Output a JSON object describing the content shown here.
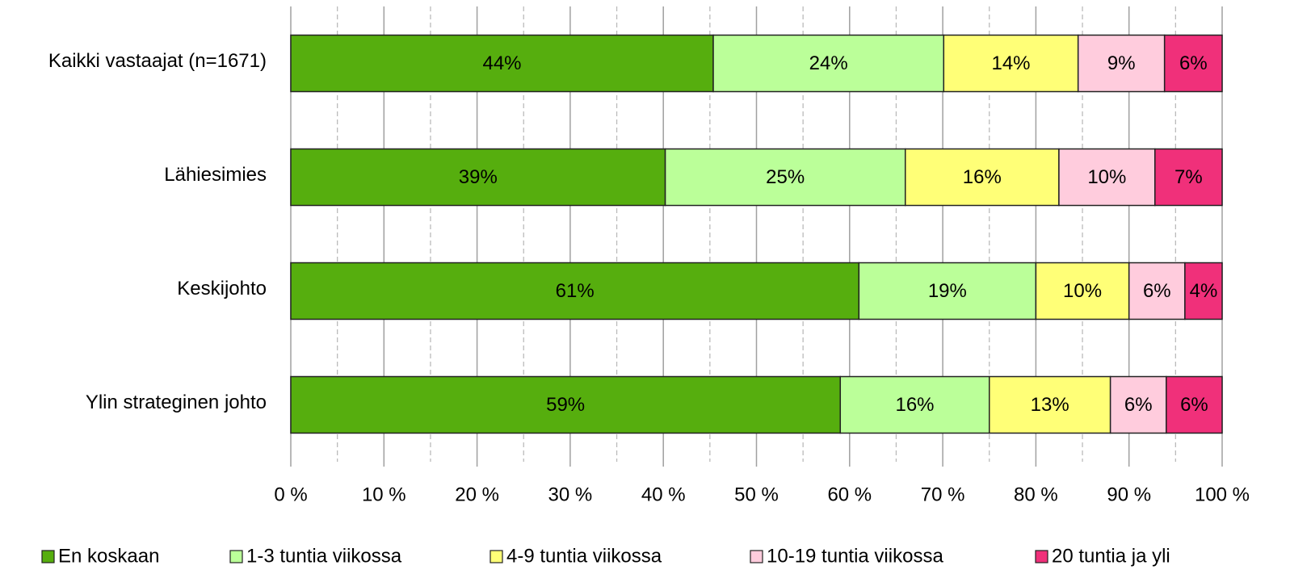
{
  "chart_data": {
    "type": "bar",
    "orientation": "horizontal",
    "stacking": "percent",
    "categories": [
      "Kaikki vastaajat (n=1671)",
      "Lähiesimies",
      "Keskijohto",
      "Ylin strateginen johto"
    ],
    "series": [
      {
        "name": "En koskaan",
        "color": "#56ae0e",
        "values": [
          44,
          39,
          61,
          59
        ],
        "value_labels": [
          "44%",
          "39%",
          "61%",
          "59%"
        ]
      },
      {
        "name": "1-3 tuntia viikossa",
        "color": "#bbff99",
        "values": [
          24,
          25,
          19,
          16
        ],
        "value_labels": [
          "24%",
          "25%",
          "19%",
          "16%"
        ]
      },
      {
        "name": "4-9 tuntia viikossa",
        "color": "#ffff77",
        "values": [
          14,
          16,
          10,
          13
        ],
        "value_labels": [
          "14%",
          "16%",
          "10%",
          "13%"
        ]
      },
      {
        "name": "10-19 tuntia viikossa",
        "color": "#ffccdd",
        "values": [
          9,
          10,
          6,
          6
        ],
        "value_labels": [
          "9%",
          "10%",
          "6%",
          "6%"
        ]
      },
      {
        "name": "20 tuntia ja yli",
        "color": "#f0307a",
        "values": [
          6,
          7,
          4,
          6
        ],
        "value_labels": [
          "6%",
          "7%",
          "4%",
          "6%"
        ]
      }
    ],
    "xlim": [
      0,
      100
    ],
    "xticks": [
      {
        "value": 0,
        "label": "0 %"
      },
      {
        "value": 10,
        "label": "10 %"
      },
      {
        "value": 20,
        "label": "20 %"
      },
      {
        "value": 30,
        "label": "30 %"
      },
      {
        "value": 40,
        "label": "40 %"
      },
      {
        "value": 50,
        "label": "50 %"
      },
      {
        "value": 60,
        "label": "60 %"
      },
      {
        "value": 70,
        "label": "70 %"
      },
      {
        "value": 80,
        "label": "80 %"
      },
      {
        "value": 90,
        "label": "90 %"
      },
      {
        "value": 100,
        "label": "100 %"
      }
    ],
    "minor_xticks": [
      5,
      15,
      25,
      35,
      45,
      55,
      65,
      75,
      85,
      95
    ],
    "grid": true,
    "legend": "bottom"
  }
}
